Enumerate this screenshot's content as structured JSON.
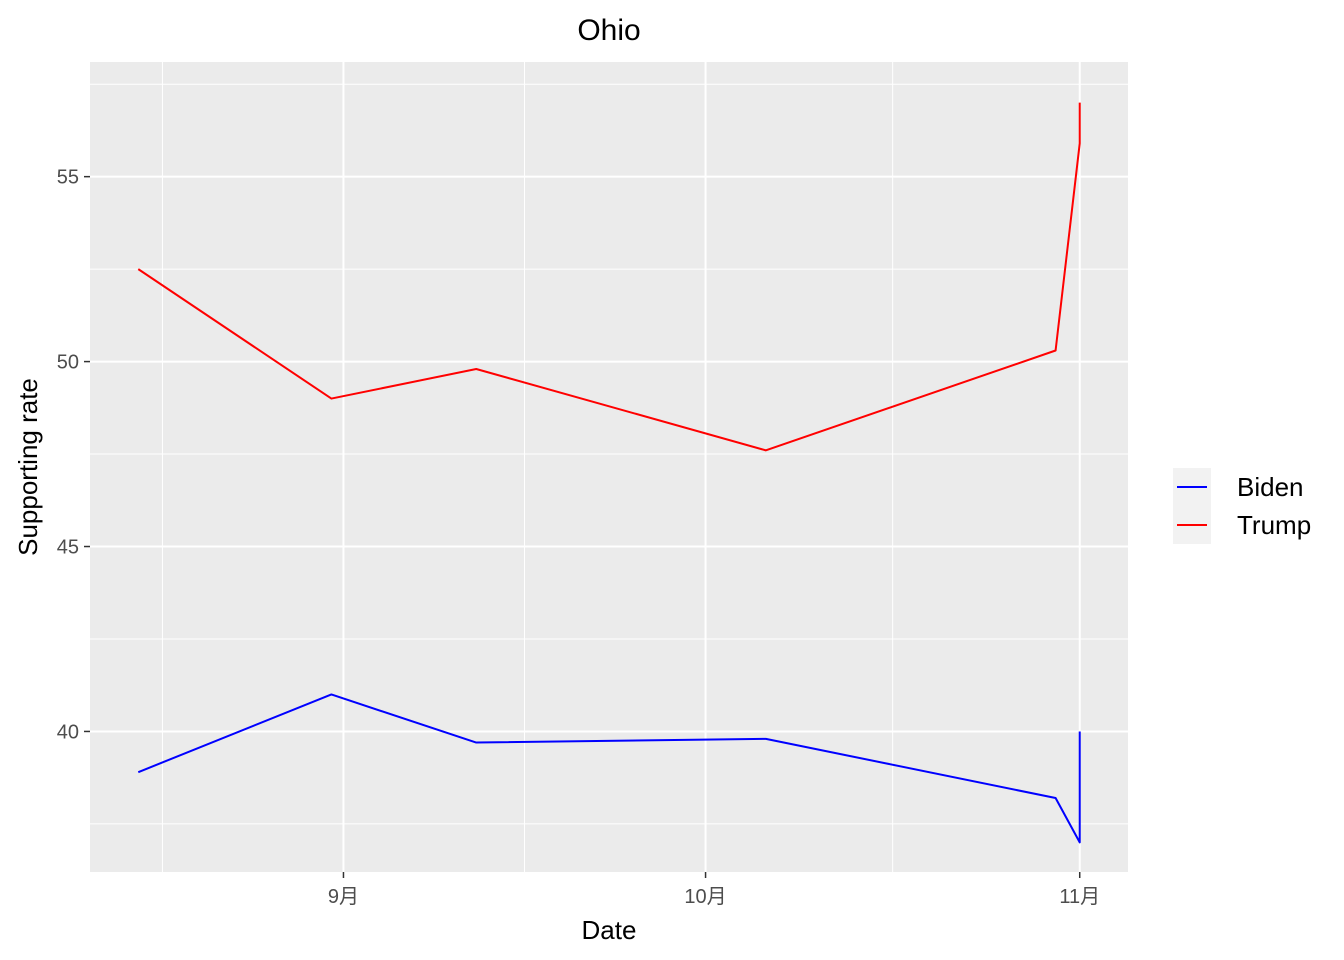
{
  "chart_data": {
    "type": "line",
    "title": "Ohio",
    "xlabel": "Date",
    "ylabel": "Supporting rate",
    "x_tick_labels": [
      "9月",
      "10月",
      "11月"
    ],
    "x_tick_dates": [
      "2020-09-01",
      "2020-10-01",
      "2020-11-01"
    ],
    "xlim": [
      "2020-08-11",
      "2020-11-05"
    ],
    "y_ticks": [
      40,
      45,
      50,
      55
    ],
    "ylim": [
      36.2,
      58.1
    ],
    "grid": true,
    "legend_position": "right",
    "series": [
      {
        "name": "Biden",
        "color": "#0000ff",
        "x": [
          "2020-08-15",
          "2020-08-31",
          "2020-09-12",
          "2020-10-06",
          "2020-10-30",
          "2020-11-01",
          "2020-11-01"
        ],
        "y": [
          38.9,
          41.0,
          39.7,
          39.8,
          38.2,
          37.0,
          40.0
        ]
      },
      {
        "name": "Trump",
        "color": "#ff0000",
        "x": [
          "2020-08-15",
          "2020-08-31",
          "2020-09-12",
          "2020-10-06",
          "2020-10-30",
          "2020-11-01",
          "2020-11-01"
        ],
        "y": [
          52.5,
          49.0,
          49.8,
          47.6,
          50.3,
          55.9,
          57.0
        ]
      }
    ]
  }
}
